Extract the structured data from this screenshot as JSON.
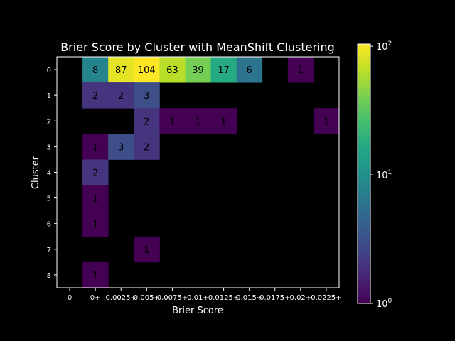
{
  "chart_data": {
    "type": "heatmap",
    "title": "Brier Score by Cluster with MeanShift Clustering",
    "xlabel": "Brier Score",
    "ylabel": "Cluster",
    "x_categories": [
      "0",
      "0+",
      "0.0025+",
      "0.005+",
      "0.0075+",
      "0.01+",
      "0.0125+",
      "0.015+",
      "0.0175+",
      "0.02+",
      "0.0225+"
    ],
    "y_categories": [
      "0",
      "1",
      "2",
      "3",
      "4",
      "5",
      "6",
      "7",
      "8"
    ],
    "cells": [
      {
        "cluster": "0",
        "bin": "0+",
        "value": 8
      },
      {
        "cluster": "0",
        "bin": "0.0025+",
        "value": 87
      },
      {
        "cluster": "0",
        "bin": "0.005+",
        "value": 104
      },
      {
        "cluster": "0",
        "bin": "0.0075+",
        "value": 63
      },
      {
        "cluster": "0",
        "bin": "0.01+",
        "value": 39
      },
      {
        "cluster": "0",
        "bin": "0.0125+",
        "value": 17
      },
      {
        "cluster": "0",
        "bin": "0.015+",
        "value": 6
      },
      {
        "cluster": "0",
        "bin": "0.02+",
        "value": 1
      },
      {
        "cluster": "1",
        "bin": "0+",
        "value": 2
      },
      {
        "cluster": "1",
        "bin": "0.0025+",
        "value": 2
      },
      {
        "cluster": "1",
        "bin": "0.005+",
        "value": 3
      },
      {
        "cluster": "2",
        "bin": "0.005+",
        "value": 2
      },
      {
        "cluster": "2",
        "bin": "0.0075+",
        "value": 1
      },
      {
        "cluster": "2",
        "bin": "0.01+",
        "value": 1
      },
      {
        "cluster": "2",
        "bin": "0.0125+",
        "value": 1
      },
      {
        "cluster": "2",
        "bin": "0.0225+",
        "value": 1
      },
      {
        "cluster": "3",
        "bin": "0+",
        "value": 1
      },
      {
        "cluster": "3",
        "bin": "0.0025+",
        "value": 3
      },
      {
        "cluster": "3",
        "bin": "0.005+",
        "value": 2
      },
      {
        "cluster": "4",
        "bin": "0+",
        "value": 2
      },
      {
        "cluster": "5",
        "bin": "0+",
        "value": 1
      },
      {
        "cluster": "6",
        "bin": "0+",
        "value": 1
      },
      {
        "cluster": "7",
        "bin": "0.005+",
        "value": 1
      },
      {
        "cluster": "8",
        "bin": "0+",
        "value": 1
      }
    ],
    "colorbar": {
      "scale": "log",
      "min": 1,
      "max": 104,
      "colormap": "viridis",
      "tick_labels": [
        {
          "value": 1,
          "base": "10",
          "exp": "0"
        },
        {
          "value": 10,
          "base": "10",
          "exp": "1"
        },
        {
          "value": 100,
          "base": "10",
          "exp": "2"
        }
      ]
    },
    "background_color": "#000000",
    "text_color": "#ffffff"
  }
}
